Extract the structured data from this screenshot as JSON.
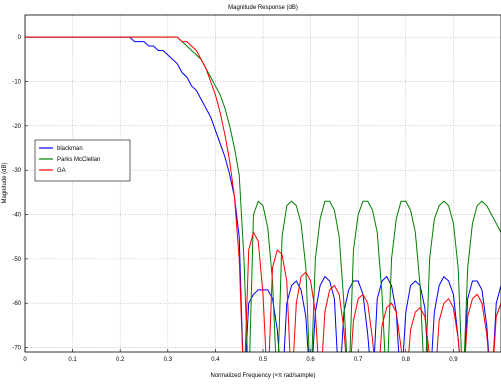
{
  "chart_data": {
    "type": "line",
    "title": "Magnitude Response (dB)",
    "x_label": "Normalized Frequency (×π rad/sample)",
    "y_label": "Magnitude (dB)",
    "x": [
      0,
      0.01,
      0.02,
      0.03,
      0.04,
      0.05,
      0.06,
      0.07,
      0.08,
      0.09,
      0.1,
      0.11,
      0.12,
      0.13,
      0.14,
      0.15,
      0.16,
      0.17,
      0.18,
      0.19,
      0.2,
      0.21,
      0.22,
      0.23,
      0.24,
      0.25,
      0.26,
      0.27,
      0.28,
      0.29,
      0.3,
      0.31,
      0.32,
      0.33,
      0.34,
      0.35,
      0.36,
      0.37,
      0.38,
      0.39,
      0.4,
      0.41,
      0.42,
      0.43,
      0.44,
      0.45,
      0.46,
      0.47,
      0.48,
      0.49,
      0.5,
      0.51,
      0.52,
      0.53,
      0.54,
      0.55,
      0.56,
      0.57,
      0.58,
      0.59,
      0.6,
      0.61,
      0.62,
      0.63,
      0.64,
      0.65,
      0.66,
      0.67,
      0.68,
      0.69,
      0.7,
      0.71,
      0.72,
      0.73,
      0.74,
      0.75,
      0.76,
      0.77,
      0.78,
      0.79,
      0.8,
      0.81,
      0.82,
      0.83,
      0.84,
      0.85,
      0.86,
      0.87,
      0.88,
      0.89,
      0.9,
      0.91,
      0.92,
      0.93,
      0.94,
      0.95,
      0.96,
      0.97,
      0.98,
      0.99,
      1
    ],
    "series": [
      {
        "name": "blackman",
        "color": "#0000ff",
        "values": [
          0,
          0,
          0,
          0,
          0,
          0,
          0,
          0,
          0,
          0,
          0,
          0,
          0,
          0,
          0,
          0,
          0,
          0,
          0,
          0,
          0,
          0,
          0,
          -1,
          -1,
          -1,
          -2,
          -2,
          -3,
          -3,
          -4,
          -5,
          -6,
          -8,
          -9,
          -11,
          -12,
          -14,
          -16,
          -18,
          -21,
          -24,
          -27,
          -31,
          -36,
          -45,
          -80,
          -60,
          -58,
          -57,
          -57,
          -57,
          -59,
          -66,
          -80,
          -60,
          -56,
          -55,
          -57,
          -63,
          -80,
          -62,
          -56,
          -54,
          -55,
          -59,
          -80,
          -62,
          -57,
          -55,
          -55,
          -58,
          -67,
          -80,
          -59,
          -55,
          -54,
          -56,
          -62,
          -80,
          -62,
          -56,
          -55,
          -56,
          -61,
          -80,
          -62,
          -56,
          -54,
          -55,
          -58,
          -68,
          -80,
          -59,
          -55,
          -55,
          -57,
          -65,
          -80,
          -60,
          -56
        ]
      },
      {
        "name": "Parks McClellan",
        "color": "#008000",
        "values": [
          0,
          0,
          0,
          0,
          0,
          0,
          0,
          0,
          0,
          0,
          0,
          0,
          0,
          0,
          0,
          0,
          0,
          0,
          0,
          0,
          0,
          0,
          0,
          0,
          0,
          0,
          0,
          0,
          0,
          0,
          0,
          0,
          0,
          -1,
          -2,
          -3,
          -4,
          -5,
          -7,
          -9,
          -11,
          -13,
          -16,
          -20,
          -25,
          -31,
          -50,
          -80,
          -40,
          -37,
          -38,
          -43,
          -55,
          -80,
          -45,
          -38,
          -37,
          -38,
          -42,
          -52,
          -80,
          -50,
          -41,
          -37,
          -37,
          -39,
          -45,
          -60,
          -80,
          -48,
          -40,
          -37,
          -37,
          -39,
          -44,
          -58,
          -80,
          -50,
          -41,
          -37,
          -37,
          -39,
          -44,
          -56,
          -80,
          -50,
          -41,
          -38,
          -37,
          -38,
          -42,
          -52,
          -80,
          -52,
          -42,
          -38,
          -37,
          -38,
          -40,
          -42,
          -44
        ]
      },
      {
        "name": "GA",
        "color": "#ff0000",
        "values": [
          0,
          0,
          0,
          0,
          0,
          0,
          0,
          0,
          0,
          0,
          0,
          0,
          0,
          0,
          0,
          0,
          0,
          0,
          0,
          0,
          0,
          0,
          0,
          0,
          0,
          0,
          0,
          0,
          0,
          0,
          0,
          0,
          0,
          -1,
          -1,
          -2,
          -3,
          -5,
          -7,
          -10,
          -13,
          -17,
          -22,
          -28,
          -36,
          -50,
          -80,
          -48,
          -44,
          -46,
          -58,
          -80,
          -52,
          -48,
          -49,
          -55,
          -80,
          -60,
          -54,
          -53,
          -55,
          -62,
          -80,
          -62,
          -57,
          -56,
          -58,
          -66,
          -80,
          -64,
          -59,
          -58,
          -60,
          -68,
          -80,
          -65,
          -61,
          -60,
          -62,
          -70,
          -80,
          -66,
          -62,
          -61,
          -63,
          -72,
          -80,
          -64,
          -60,
          -59,
          -61,
          -68,
          -80,
          -63,
          -59,
          -58,
          -60,
          -67,
          -80,
          -63,
          -60
        ]
      }
    ],
    "xlim": [
      0,
      1
    ],
    "ylim": [
      -71,
      5
    ],
    "xticks": [
      0,
      0.1,
      0.2,
      0.3,
      0.4,
      0.5,
      0.6,
      0.7,
      0.8,
      0.9
    ],
    "yticks": [
      0,
      -10,
      -20,
      -30,
      -40,
      -50,
      -60,
      -70
    ],
    "grid": true,
    "legend": "left"
  }
}
